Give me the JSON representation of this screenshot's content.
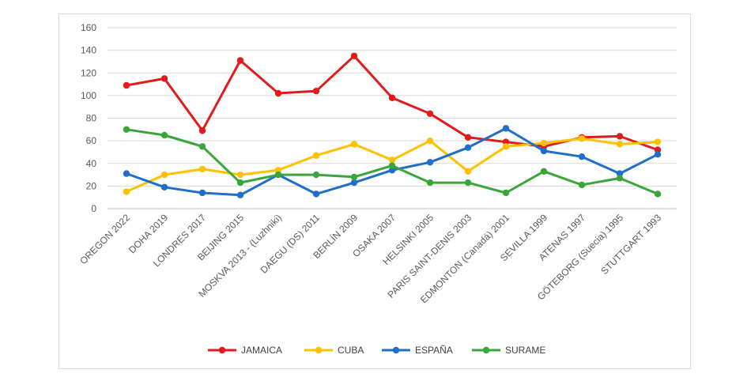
{
  "chart_data": {
    "type": "line",
    "categories": [
      "OREGON 2022",
      "DOHA 2019",
      "LONDRES 2017",
      "BEIJING 2015",
      "MOSKVA 2013 - (Luzhniki)",
      "DAEGU (DS) 2011",
      "BERLÍN 2009",
      "OSAKA 2007",
      "HELSINKI 2005",
      "PARIS SAINT-DENIS 2003",
      "EDMONTON (Canadá) 2001",
      "SEVILLA 1999",
      "ATENAS 1997",
      "GÖTEBORG (Suecia) 1995",
      "STUTTGART 1993"
    ],
    "series": [
      {
        "name": "JAMAICA",
        "color": "#e31a1c",
        "values": [
          109,
          115,
          69,
          131,
          102,
          104,
          135,
          98,
          84,
          63,
          59,
          55,
          63,
          64,
          52
        ]
      },
      {
        "name": "CUBA",
        "color": "#ffc000",
        "values": [
          15,
          30,
          35,
          30,
          34,
          47,
          57,
          43,
          60,
          33,
          55,
          58,
          62,
          57,
          59
        ]
      },
      {
        "name": "ESPAÑA",
        "color": "#1f6fc8",
        "values": [
          31,
          19,
          14,
          12,
          30,
          13,
          23,
          34,
          41,
          54,
          71,
          51,
          46,
          31,
          48
        ]
      },
      {
        "name": "SURAME",
        "color": "#3aa63a",
        "values": [
          70,
          65,
          55,
          23,
          30,
          30,
          28,
          38,
          23,
          23,
          14,
          33,
          21,
          27,
          13
        ]
      }
    ],
    "ylim": [
      0,
      160
    ],
    "yticks": [
      0,
      20,
      40,
      60,
      80,
      100,
      120,
      140,
      160
    ],
    "grid": true,
    "legend_position": "bottom",
    "title": "",
    "xlabel": "",
    "ylabel": ""
  }
}
